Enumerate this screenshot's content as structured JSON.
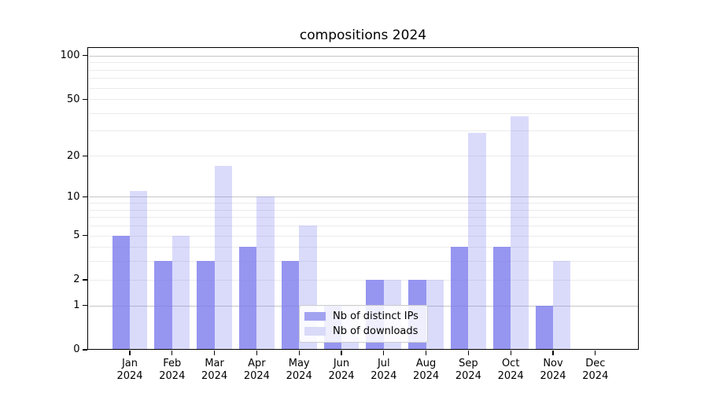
{
  "chart_data": {
    "type": "bar",
    "title": "compositions 2024",
    "y_scale": "log10(1+x)",
    "categories": [
      "Jan",
      "Feb",
      "Mar",
      "Apr",
      "May",
      "Jun",
      "Jul",
      "Aug",
      "Sep",
      "Oct",
      "Nov",
      "Dec"
    ],
    "category_year": "2024",
    "series": [
      {
        "name": "Nb of distinct IPs",
        "values": [
          5,
          3,
          3,
          4,
          3,
          1,
          2,
          2,
          4,
          4,
          1,
          0
        ],
        "color": "#a2a3f0",
        "fill": "rgba(120,121,237,0.78)"
      },
      {
        "name": "Nb of downloads",
        "values": [
          11,
          5,
          17,
          10,
          6,
          1,
          2,
          2,
          29,
          38,
          3,
          0
        ],
        "color": "#d9daf8",
        "fill": "rgba(122,125,240,0.28)"
      }
    ],
    "y_ticks": [
      0,
      1,
      2,
      5,
      10,
      20,
      50,
      100
    ],
    "y_grid_major": [
      1,
      10,
      100
    ],
    "y_grid_minor": [
      2,
      3,
      4,
      5,
      6,
      7,
      8,
      9,
      20,
      30,
      40,
      50,
      60,
      70,
      80,
      90
    ],
    "ylim": [
      0,
      112
    ],
    "xlabel": "",
    "ylabel": "",
    "grid": "on",
    "legend": {
      "position": "lower center",
      "entries": [
        "Nb of distinct IPs",
        "Nb of downloads"
      ]
    }
  },
  "colors": {
    "bar_distinct_ips": "#a2a3f0",
    "bar_downloads": "#d9daf8",
    "grid_major": "#c6c6c6",
    "grid_minor": "#ebebeb",
    "spine": "#000000",
    "text": "#000000",
    "legend_border": "#cccccc",
    "legend_background": "rgba(255,255,255,0.85)"
  }
}
